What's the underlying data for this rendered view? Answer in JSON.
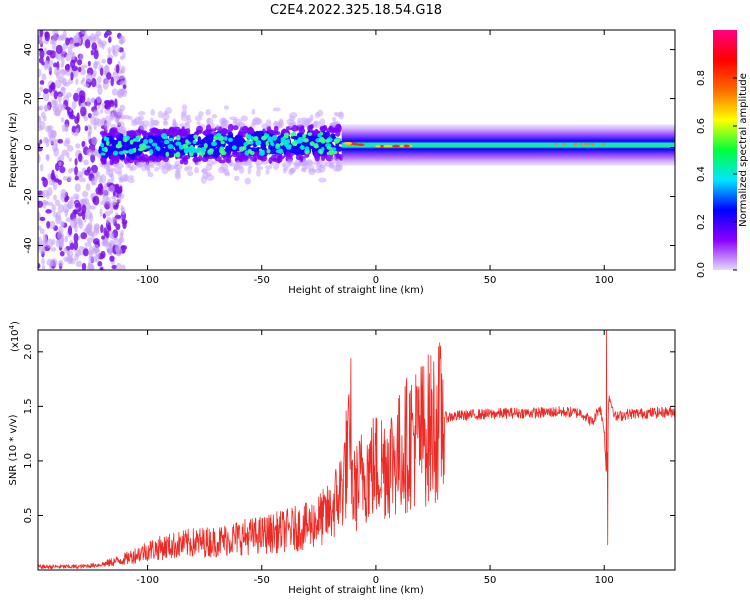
{
  "figure": {
    "title": "C2E4.2022.325.18.54.G18"
  },
  "chart_data": [
    {
      "type": "heatmap",
      "title": "",
      "xlabel": "Height of straight line (km)",
      "ylabel": "Frequency (Hz)",
      "xlim": [
        -148,
        131
      ],
      "ylim": [
        -50,
        48
      ],
      "xticks": [
        -100,
        -50,
        0,
        50,
        100
      ],
      "yticks": [
        -40,
        -20,
        0,
        20,
        40
      ],
      "xtick_labels": [
        "-100",
        "-50",
        "0",
        "50",
        "100"
      ],
      "ytick_labels": [
        "-40",
        "-20",
        "0",
        "20",
        "40"
      ],
      "colorbar": {
        "label": "Normalized spectral amplitude",
        "range": [
          0,
          1
        ],
        "ticks": [
          0.0,
          0.2,
          0.4,
          0.6,
          0.8
        ],
        "tick_labels": [
          "0.0",
          "0.2",
          "0.4",
          "0.6",
          "0.8"
        ],
        "colormap": [
          "#e6d9ff",
          "#8a00ff",
          "#0000ff",
          "#00e5ff",
          "#00ff3c",
          "#ffff00",
          "#ff6a00",
          "#ff0000",
          "#ff0080"
        ]
      },
      "regions": [
        {
          "x_range": [
            -148,
            -120
          ],
          "freq_range": [
            -50,
            48
          ],
          "amplitude": 0.05,
          "description": "sparse scattered noise"
        },
        {
          "x_range": [
            -120,
            -15
          ],
          "freq_range": [
            -14,
            14
          ],
          "amplitude": 0.25,
          "description": "broad tone band"
        },
        {
          "x_range": [
            -15,
            20
          ],
          "freq_range": [
            -4,
            4
          ],
          "amplitude": 0.7
        },
        {
          "x_range": [
            20,
            131
          ],
          "freq_range": [
            -3,
            3
          ],
          "amplitude": 0.45
        }
      ],
      "tone_line": {
        "x": [
          -148,
          -15,
          0,
          50,
          100,
          131
        ],
        "freq": [
          0,
          2,
          0.5,
          1,
          1.5,
          1
        ]
      }
    },
    {
      "type": "line",
      "title": "",
      "xlabel": "Height of straight line (km)",
      "ylabel": "SNR (10 * v/v)",
      "y_multiplier": "(x10",
      "y_multiplier_exp": "4",
      "y_multiplier_close": ")",
      "xlim": [
        -148,
        131
      ],
      "ylim": [
        0,
        2.2
      ],
      "xticks": [
        -100,
        -50,
        0,
        50,
        100
      ],
      "yticks": [
        0.5,
        1.0,
        1.5,
        2.0
      ],
      "xtick_labels": [
        "-100",
        "-50",
        "0",
        "50",
        "100"
      ],
      "ytick_labels": [
        "0.5",
        "1.0",
        "1.5",
        "2.0"
      ],
      "series": [
        {
          "color": "#ee2a24",
          "x": [
            -148,
            -130,
            -120,
            -110,
            -100,
            -90,
            -80,
            -70,
            -60,
            -50,
            -40,
            -30,
            -20,
            -15,
            -12,
            -10,
            -5,
            0,
            5,
            10,
            15,
            20,
            25,
            30,
            40,
            50,
            60,
            70,
            80,
            90,
            95,
            98,
            100,
            101,
            102,
            105,
            110,
            120,
            131
          ],
          "values": [
            0.03,
            0.03,
            0.05,
            0.1,
            0.18,
            0.22,
            0.25,
            0.26,
            0.3,
            0.32,
            0.36,
            0.4,
            0.52,
            0.75,
            1.1,
            0.7,
            0.9,
            0.95,
            1.0,
            1.05,
            1.2,
            1.25,
            1.32,
            1.4,
            1.42,
            1.43,
            1.44,
            1.44,
            1.45,
            1.44,
            1.35,
            1.5,
            1.3,
            0.8,
            1.6,
            1.4,
            1.43,
            1.44,
            1.45
          ],
          "peaks": [
            {
              "x": -11,
              "y": 1.94
            },
            {
              "x": 101,
              "y": 2.2
            },
            {
              "x": 101.5,
              "y": 0.23
            }
          ]
        }
      ]
    }
  ]
}
